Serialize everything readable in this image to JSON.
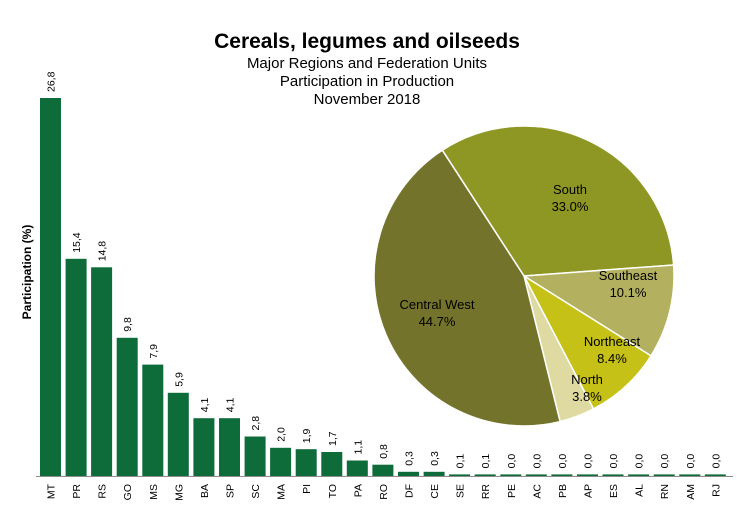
{
  "chart_data": [
    {
      "type": "bar",
      "title": "Cereals, legumes and oilseeds",
      "subtitle_lines": [
        "Major Regions and Federation Units",
        "Participation in Production",
        "November 2018"
      ],
      "ylabel": "Participation (%)",
      "ylim": [
        0,
        26.8
      ],
      "grid": false,
      "bar_color": "#0e6b3a",
      "categories": [
        "MT",
        "PR",
        "RS",
        "GO",
        "MS",
        "MG",
        "BA",
        "SP",
        "SC",
        "MA",
        "PI",
        "TO",
        "PA",
        "RO",
        "DF",
        "CE",
        "SE",
        "RR",
        "PE",
        "AC",
        "PB",
        "AP",
        "ES",
        "AL",
        "RN",
        "AM",
        "RJ"
      ],
      "values": [
        26.8,
        15.4,
        14.8,
        9.8,
        7.9,
        5.9,
        4.1,
        4.1,
        2.8,
        2.0,
        1.9,
        1.7,
        1.1,
        0.8,
        0.3,
        0.3,
        0.1,
        0.1,
        0.0,
        0.0,
        0.0,
        0.0,
        0.0,
        0.0,
        0.0,
        0.0,
        0.0
      ],
      "value_labels": [
        "26,8",
        "15,4",
        "14,8",
        "9,8",
        "7,9",
        "5,9",
        "4,1",
        "4,1",
        "2,8",
        "2,0",
        "1,9",
        "1,7",
        "1,1",
        "0,8",
        "0,3",
        "0,3",
        "0,1",
        "0,1",
        "0,0",
        "0,0",
        "0,0",
        "0,0",
        "0,0",
        "0,0",
        "0,0",
        "0,0",
        "0,0"
      ]
    },
    {
      "type": "pie",
      "slices": [
        {
          "name": "South",
          "value": 33.0,
          "label": "33.0%",
          "color": "#8f9724"
        },
        {
          "name": "Southeast",
          "value": 10.1,
          "label": "10.1%",
          "color": "#b3b160"
        },
        {
          "name": "Northeast",
          "value": 8.4,
          "label": "8.4%",
          "color": "#c6c117"
        },
        {
          "name": "North",
          "value": 3.8,
          "label": "3.8%",
          "color": "#dedaa2"
        },
        {
          "name": "Central West",
          "value": 44.7,
          "label": "44.7%",
          "color": "#74732b"
        }
      ]
    }
  ]
}
